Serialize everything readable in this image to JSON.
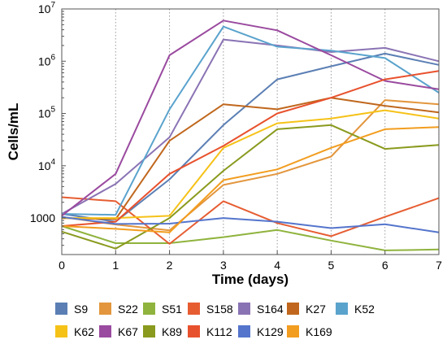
{
  "chart_data": {
    "type": "line",
    "title": "",
    "xlabel": "Time (days)",
    "ylabel": "Cells/mL",
    "yscale": "log",
    "xlim": [
      0,
      7
    ],
    "ylim": [
      200,
      10000000
    ],
    "grid": "vertical-dotted",
    "legend_position": "bottom",
    "x": [
      0,
      1,
      2,
      3,
      4,
      5,
      6,
      7
    ],
    "x_tick_labels": [
      "0",
      "1",
      "2",
      "3",
      "4",
      "5",
      "6",
      "7"
    ],
    "y_ticks": [
      {
        "value": 1000,
        "label": "1000"
      },
      {
        "value": 10000,
        "label": "10",
        "exp": "4"
      },
      {
        "value": 100000,
        "label": "10",
        "exp": "5"
      },
      {
        "value": 1000000,
        "label": "10",
        "exp": "6"
      },
      {
        "value": 10000000,
        "label": "10",
        "exp": "7"
      }
    ],
    "series": [
      {
        "name": "S9",
        "color": "#5b7fb4",
        "values": [
          1200,
          850,
          5500,
          60000,
          450000,
          800000,
          1400000,
          850000
        ]
      },
      {
        "name": "S22",
        "color": "#e3963d",
        "values": [
          1050,
          750,
          580,
          4300,
          7000,
          15000,
          180000,
          150000
        ]
      },
      {
        "name": "S51",
        "color": "#8fb33d",
        "values": [
          700,
          330,
          330,
          430,
          590,
          370,
          240,
          250
        ]
      },
      {
        "name": "S158",
        "color": "#e65d32",
        "values": [
          2500,
          2100,
          320,
          2100,
          800,
          450,
          1050,
          2400
        ]
      },
      {
        "name": "S164",
        "color": "#8a73b4",
        "values": [
          1200,
          4500,
          35000,
          2600000,
          2000000,
          1500000,
          1800000,
          1000000
        ]
      },
      {
        "name": "K27",
        "color": "#c0671d",
        "values": [
          1000,
          950,
          30000,
          150000,
          120000,
          200000,
          140000,
          105000
        ]
      },
      {
        "name": "K52",
        "color": "#5aa3cd",
        "values": [
          1200,
          1150,
          120000,
          4600000,
          1900000,
          1600000,
          1150000,
          250000
        ]
      },
      {
        "name": "K62",
        "color": "#f5c218",
        "values": [
          1000,
          1000,
          1100,
          22000,
          65000,
          80000,
          115000,
          80000
        ]
      },
      {
        "name": "K67",
        "color": "#9a4a9f",
        "values": [
          1100,
          7000,
          1300000,
          6000000,
          3900000,
          1300000,
          420000,
          290000
        ]
      },
      {
        "name": "K89",
        "color": "#8a9a1e",
        "values": [
          550,
          260,
          1000,
          8000,
          50000,
          60000,
          21000,
          25000
        ]
      },
      {
        "name": "K112",
        "color": "#e8512d",
        "values": [
          700,
          850,
          7000,
          24000,
          100000,
          200000,
          450000,
          650000
        ]
      },
      {
        "name": "K129",
        "color": "#5575cc",
        "values": [
          1050,
          770,
          780,
          1000,
          850,
          640,
          760,
          530
        ]
      },
      {
        "name": "K169",
        "color": "#f29d1f",
        "values": [
          700,
          620,
          530,
          5300,
          8500,
          22000,
          50000,
          55000
        ]
      }
    ]
  }
}
